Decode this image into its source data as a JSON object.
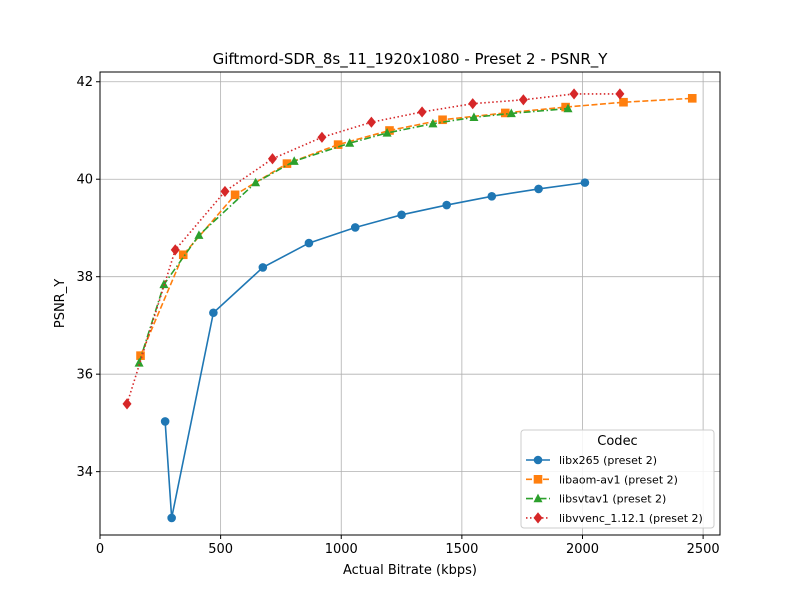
{
  "chart_data": {
    "type": "line",
    "title": "Giftmord-SDR_8s_11_1920x1080 - Preset 2 - PSNR_Y",
    "xlabel": "Actual Bitrate (kbps)",
    "ylabel": "PSNR_Y",
    "xlim": [
      0,
      2570
    ],
    "ylim": [
      32.7,
      42.2
    ],
    "xticks": [
      0,
      500,
      1000,
      1500,
      2000,
      2500
    ],
    "yticks": [
      34,
      36,
      38,
      40,
      42
    ],
    "grid": true,
    "legend": {
      "title": "Codec",
      "position": "lower-right"
    },
    "series": [
      {
        "name": "libx265 (preset 2)",
        "color": "#1f77b4",
        "marker": "circle",
        "linestyle": "solid",
        "points": [
          [
            270,
            35.03
          ],
          [
            297,
            33.05
          ],
          [
            470,
            37.26
          ],
          [
            675,
            38.19
          ],
          [
            866,
            38.69
          ],
          [
            1058,
            39.01
          ],
          [
            1250,
            39.27
          ],
          [
            1437,
            39.47
          ],
          [
            1624,
            39.65
          ],
          [
            1818,
            39.8
          ],
          [
            2010,
            39.93
          ]
        ]
      },
      {
        "name": "libaom-av1 (preset 2)",
        "color": "#ff7f0e",
        "marker": "square",
        "linestyle": "dashed",
        "points": [
          [
            168,
            36.38
          ],
          [
            345,
            38.45
          ],
          [
            560,
            39.68
          ],
          [
            775,
            40.32
          ],
          [
            987,
            40.71
          ],
          [
            1200,
            41.0
          ],
          [
            1420,
            41.22
          ],
          [
            1680,
            41.36
          ],
          [
            1930,
            41.48
          ],
          [
            2170,
            41.58
          ],
          [
            2455,
            41.66
          ]
        ]
      },
      {
        "name": "libsvtav1 (preset 2)",
        "color": "#2ca02c",
        "marker": "triangle",
        "linestyle": "dashdot",
        "points": [
          [
            162,
            36.23
          ],
          [
            265,
            37.84
          ],
          [
            410,
            38.85
          ],
          [
            645,
            39.93
          ],
          [
            805,
            40.37
          ],
          [
            1035,
            40.74
          ],
          [
            1190,
            40.95
          ],
          [
            1380,
            41.14
          ],
          [
            1550,
            41.27
          ],
          [
            1705,
            41.35
          ],
          [
            1940,
            41.45
          ]
        ]
      },
      {
        "name": "libvvenc_1.12.1 (preset 2)",
        "color": "#d62728",
        "marker": "diamond",
        "linestyle": "dotted",
        "points": [
          [
            112,
            35.39
          ],
          [
            312,
            38.55
          ],
          [
            518,
            39.75
          ],
          [
            715,
            40.42
          ],
          [
            920,
            40.86
          ],
          [
            1125,
            41.17
          ],
          [
            1335,
            41.38
          ],
          [
            1545,
            41.55
          ],
          [
            1755,
            41.63
          ],
          [
            1965,
            41.75
          ],
          [
            2155,
            41.75
          ]
        ]
      }
    ]
  }
}
